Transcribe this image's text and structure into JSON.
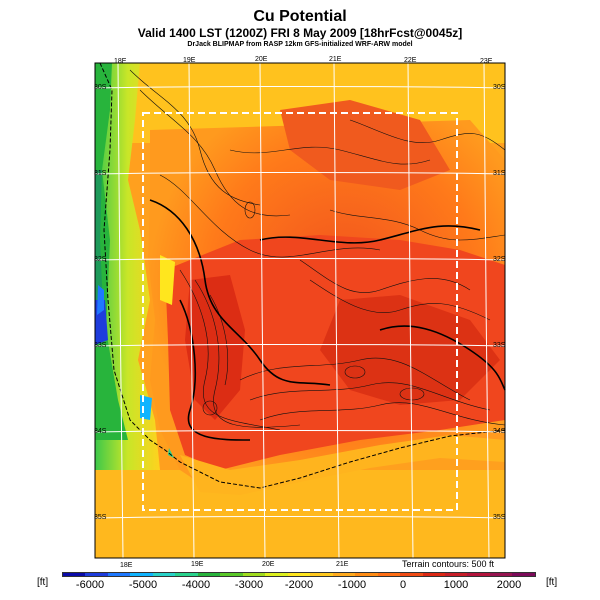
{
  "header": {
    "title": "Cu Potential",
    "subtitle": "Valid 1400 LST (1200Z) FRI 8 May 2009 [18hrFcst@0045z]",
    "credit": "DrJack BLIPMAP from RASP 12km GFS-initialized WRF-ARW model"
  },
  "map": {
    "lon_labels_top": [
      "18E",
      "19E",
      "20E",
      "21E",
      "22E",
      "23E"
    ],
    "lon_labels_bottom": [
      "18E",
      "19E",
      "20E",
      "21E"
    ],
    "lat_labels_left": [
      "30S",
      "31S",
      "32S",
      "33S",
      "34S",
      "35S"
    ],
    "lat_labels_right": [
      "30S",
      "31S",
      "32S",
      "33S",
      "34S",
      "35S"
    ],
    "terrain_note": "Terrain contours: 500 ft"
  },
  "legend": {
    "unit_left": "[ft]",
    "unit_right": "[ft]",
    "tick_labels": [
      "-6000",
      "-5000",
      "-4000",
      "-3000",
      "-2000",
      "-1000",
      "0",
      "1000",
      "2000"
    ],
    "colors": [
      "#0a0aa8",
      "#1e3cdc",
      "#1e78ff",
      "#10b4ff",
      "#28d2c8",
      "#28d28c",
      "#28b43c",
      "#5ac828",
      "#a0dc1e",
      "#dcf01e",
      "#ffe61e",
      "#ffc81e",
      "#ffaa1e",
      "#ff8c14",
      "#ff6e14",
      "#f04b14",
      "#dc2814",
      "#c81e28",
      "#b4143c",
      "#961450",
      "#7c0a5a"
    ]
  }
}
